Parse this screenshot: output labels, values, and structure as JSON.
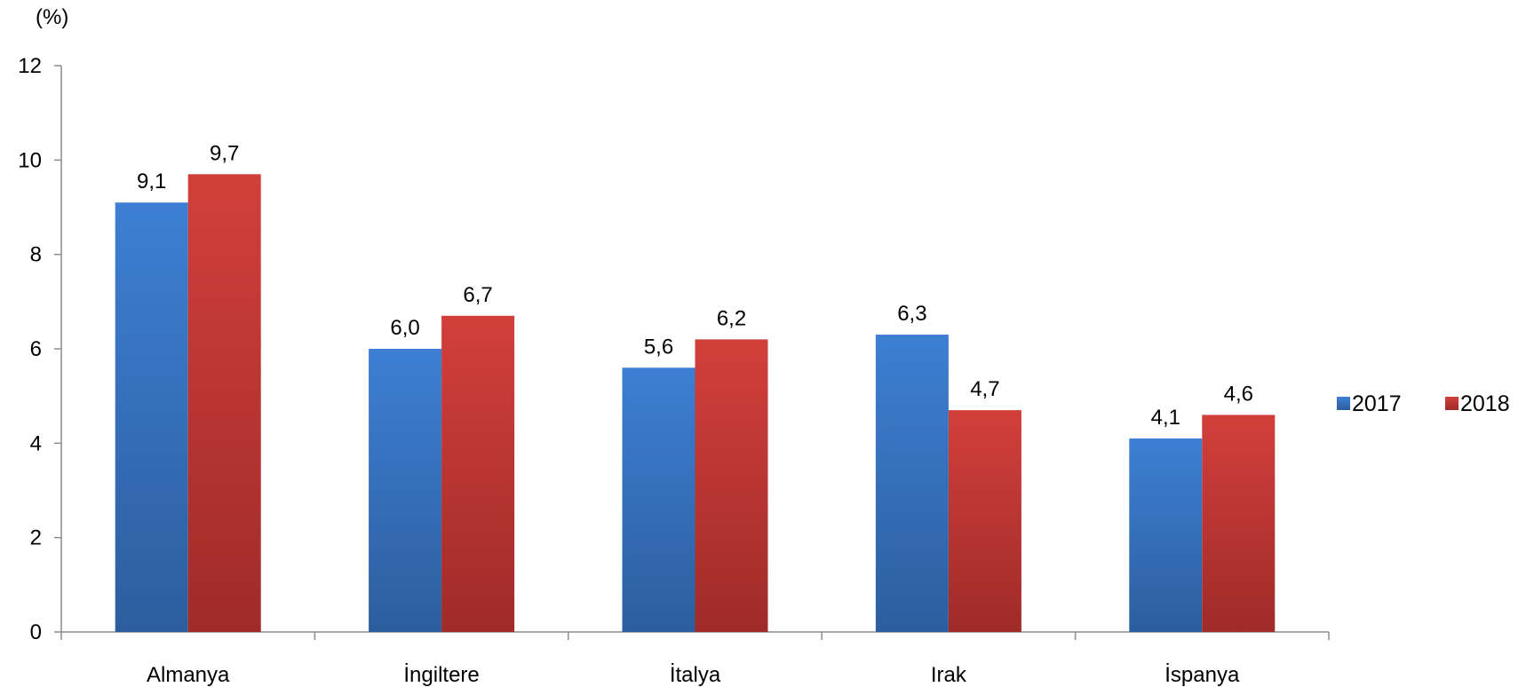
{
  "chart_data": {
    "type": "bar",
    "unit_label": "(%)",
    "categories": [
      "Almanya",
      "İngiltere",
      "İtalya",
      "Irak",
      "İspanya"
    ],
    "series": [
      {
        "name": "2017",
        "values": [
          9.1,
          6.0,
          5.6,
          6.3,
          4.1
        ],
        "labels": [
          "9,1",
          "6,0",
          "5,6",
          "6,3",
          "4,1"
        ],
        "color": "#3a78c9"
      },
      {
        "name": "2018",
        "values": [
          9.7,
          6.7,
          6.2,
          4.7,
          4.6
        ],
        "labels": [
          "9,7",
          "6,7",
          "6,2",
          "4,7",
          "4,6"
        ],
        "color": "#c83a37"
      }
    ],
    "ylim": [
      0,
      12
    ],
    "yticks": [
      0,
      2,
      4,
      6,
      8,
      10,
      12
    ],
    "grid": false,
    "legend_position": "right"
  }
}
